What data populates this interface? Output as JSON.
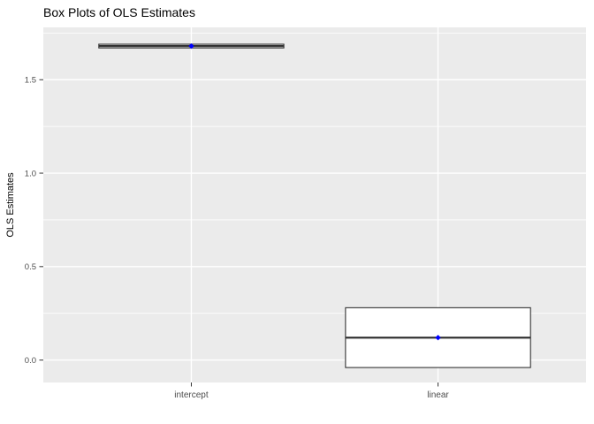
{
  "chart_data": {
    "type": "boxplot",
    "title": "Box Plots of OLS Estimates",
    "xlabel": "",
    "ylabel": "OLS Estimates",
    "categories": [
      "intercept",
      "linear"
    ],
    "series": [
      {
        "name": "intercept",
        "q1": 1.67,
        "median": 1.68,
        "q3": 1.69,
        "mean_point": 1.68,
        "whisker_low": null,
        "whisker_high": null
      },
      {
        "name": "linear",
        "q1": -0.04,
        "median": 0.12,
        "q3": 0.28,
        "mean_point": 0.12,
        "whisker_low": null,
        "whisker_high": null
      }
    ],
    "y_major_ticks": [
      0.0,
      0.5,
      1.0,
      1.5
    ],
    "y_tick_labels": [
      "0.0",
      "0.5",
      "1.0",
      "1.5"
    ],
    "y_minor_ticks": [
      0.25,
      0.75,
      1.25,
      1.75
    ],
    "ylim": [
      -0.12,
      1.78
    ],
    "grid": "white major and minor horizontal lines, white vertical lines at category centers, on gray panel",
    "legend": "none",
    "box_width_fraction": 0.75,
    "colors": {
      "figure_background": "#FFFFFF",
      "panel_background": "#EBEBEB",
      "gridline": "#FFFFFF",
      "box_fill": "#FFFFFF",
      "box_outline": "#333333",
      "median_line": "#333333",
      "mean_point": "#0000FF",
      "axis_text": "#4D4D4D",
      "tick_mark": "#333333",
      "title_text": "#000000"
    }
  }
}
